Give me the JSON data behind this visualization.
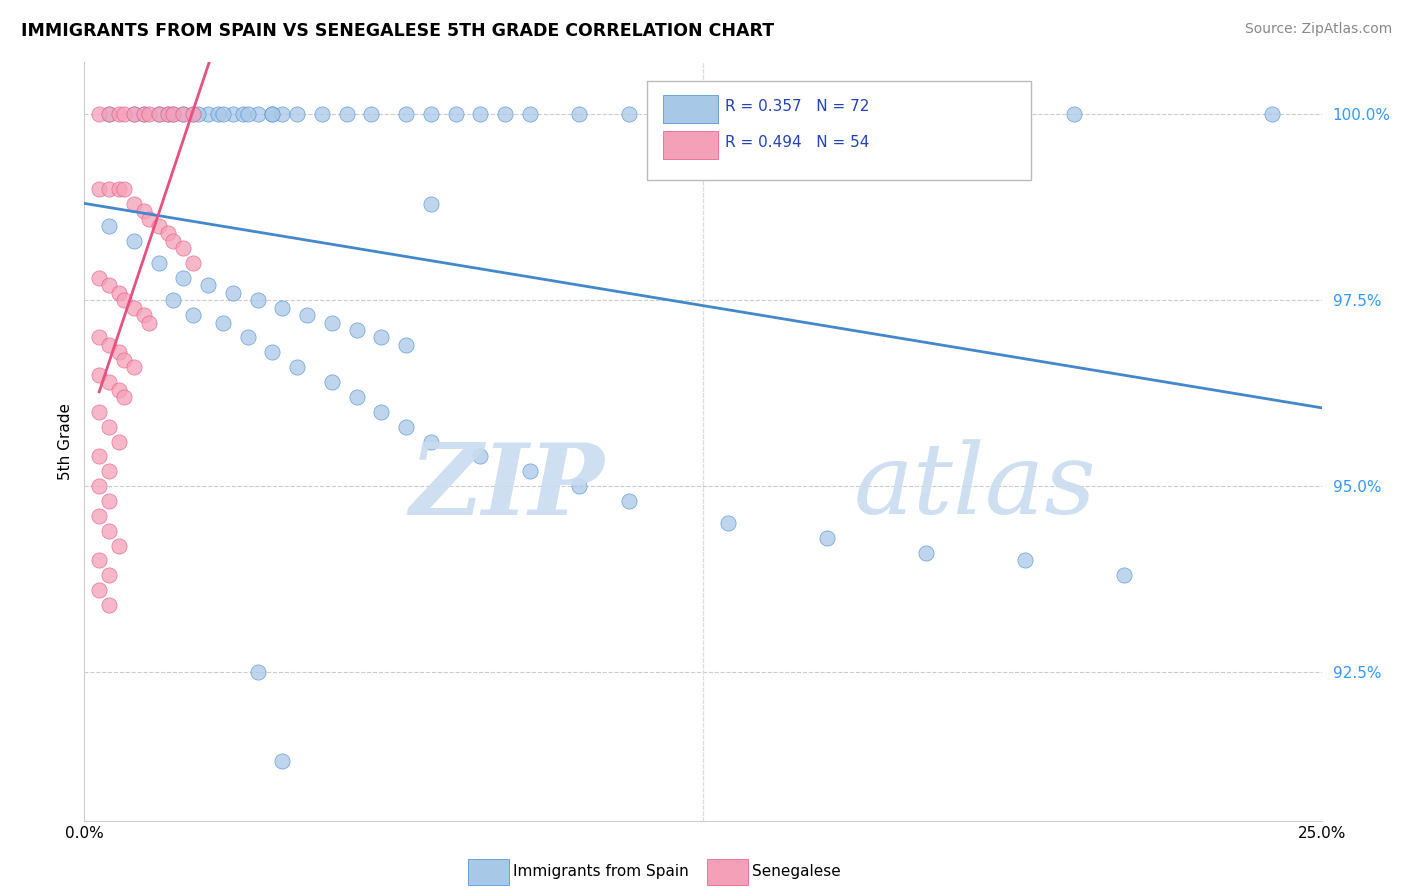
{
  "title": "IMMIGRANTS FROM SPAIN VS SENEGALESE 5TH GRADE CORRELATION CHART",
  "source": "Source: ZipAtlas.com",
  "ylabel": "5th Grade",
  "ytick_vals": [
    0.925,
    0.95,
    0.975,
    1.0
  ],
  "ytick_labels": [
    "92.5%",
    "95.0%",
    "97.5%",
    "100.0%"
  ],
  "xtick_vals": [
    0.0,
    0.25
  ],
  "xtick_labels": [
    "0.0%",
    "25.0%"
  ],
  "xlim": [
    0.0,
    0.25
  ],
  "ylim": [
    0.905,
    1.007
  ],
  "blue_color": "#a8c8e8",
  "pink_color": "#f4a0b8",
  "blue_line_color": "#4488cc",
  "pink_line_color": "#e85080",
  "legend_blue_text": "R = 0.357   N = 72",
  "legend_pink_text": "R = 0.494   N = 54",
  "watermark_zip": "ZIP",
  "watermark_atlas": "atlas",
  "bottom_legend_blue": "Immigrants from Spain",
  "bottom_legend_pink": "Senegalese",
  "blue_x": [
    0.005,
    0.01,
    0.015,
    0.017,
    0.02,
    0.022,
    0.025,
    0.027,
    0.03,
    0.032,
    0.035,
    0.038,
    0.04,
    0.012,
    0.018,
    0.023,
    0.028,
    0.033,
    0.038,
    0.043,
    0.048,
    0.053,
    0.058,
    0.065,
    0.07,
    0.075,
    0.08,
    0.085,
    0.09,
    0.1,
    0.11,
    0.12,
    0.13,
    0.15,
    0.2,
    0.24,
    0.07,
    0.005,
    0.01,
    0.015,
    0.02,
    0.025,
    0.03,
    0.035,
    0.04,
    0.045,
    0.05,
    0.055,
    0.06,
    0.065,
    0.018,
    0.022,
    0.028,
    0.033,
    0.038,
    0.043,
    0.05,
    0.055,
    0.06,
    0.065,
    0.07,
    0.08,
    0.09,
    0.1,
    0.11,
    0.13,
    0.15,
    0.17,
    0.19,
    0.21,
    0.035,
    0.04
  ],
  "blue_y": [
    1.0,
    1.0,
    1.0,
    1.0,
    1.0,
    1.0,
    1.0,
    1.0,
    1.0,
    1.0,
    1.0,
    1.0,
    1.0,
    1.0,
    1.0,
    1.0,
    1.0,
    1.0,
    1.0,
    1.0,
    1.0,
    1.0,
    1.0,
    1.0,
    1.0,
    1.0,
    1.0,
    1.0,
    1.0,
    1.0,
    1.0,
    1.0,
    1.0,
    1.0,
    1.0,
    1.0,
    0.988,
    0.985,
    0.983,
    0.98,
    0.978,
    0.977,
    0.976,
    0.975,
    0.974,
    0.973,
    0.972,
    0.971,
    0.97,
    0.969,
    0.975,
    0.973,
    0.972,
    0.97,
    0.968,
    0.966,
    0.964,
    0.962,
    0.96,
    0.958,
    0.956,
    0.954,
    0.952,
    0.95,
    0.948,
    0.945,
    0.943,
    0.941,
    0.94,
    0.938,
    0.925,
    0.913
  ],
  "pink_x": [
    0.003,
    0.005,
    0.007,
    0.008,
    0.01,
    0.012,
    0.013,
    0.015,
    0.017,
    0.018,
    0.02,
    0.022,
    0.003,
    0.005,
    0.007,
    0.008,
    0.01,
    0.012,
    0.013,
    0.015,
    0.017,
    0.018,
    0.02,
    0.022,
    0.003,
    0.005,
    0.007,
    0.008,
    0.01,
    0.012,
    0.013,
    0.003,
    0.005,
    0.007,
    0.008,
    0.01,
    0.003,
    0.005,
    0.007,
    0.008,
    0.003,
    0.005,
    0.007,
    0.003,
    0.005,
    0.003,
    0.005,
    0.003,
    0.005,
    0.007,
    0.003,
    0.005,
    0.003,
    0.005
  ],
  "pink_y": [
    1.0,
    1.0,
    1.0,
    1.0,
    1.0,
    1.0,
    1.0,
    1.0,
    1.0,
    1.0,
    1.0,
    1.0,
    0.99,
    0.99,
    0.99,
    0.99,
    0.988,
    0.987,
    0.986,
    0.985,
    0.984,
    0.983,
    0.982,
    0.98,
    0.978,
    0.977,
    0.976,
    0.975,
    0.974,
    0.973,
    0.972,
    0.97,
    0.969,
    0.968,
    0.967,
    0.966,
    0.965,
    0.964,
    0.963,
    0.962,
    0.96,
    0.958,
    0.956,
    0.954,
    0.952,
    0.95,
    0.948,
    0.946,
    0.944,
    0.942,
    0.94,
    0.938,
    0.936,
    0.934
  ]
}
